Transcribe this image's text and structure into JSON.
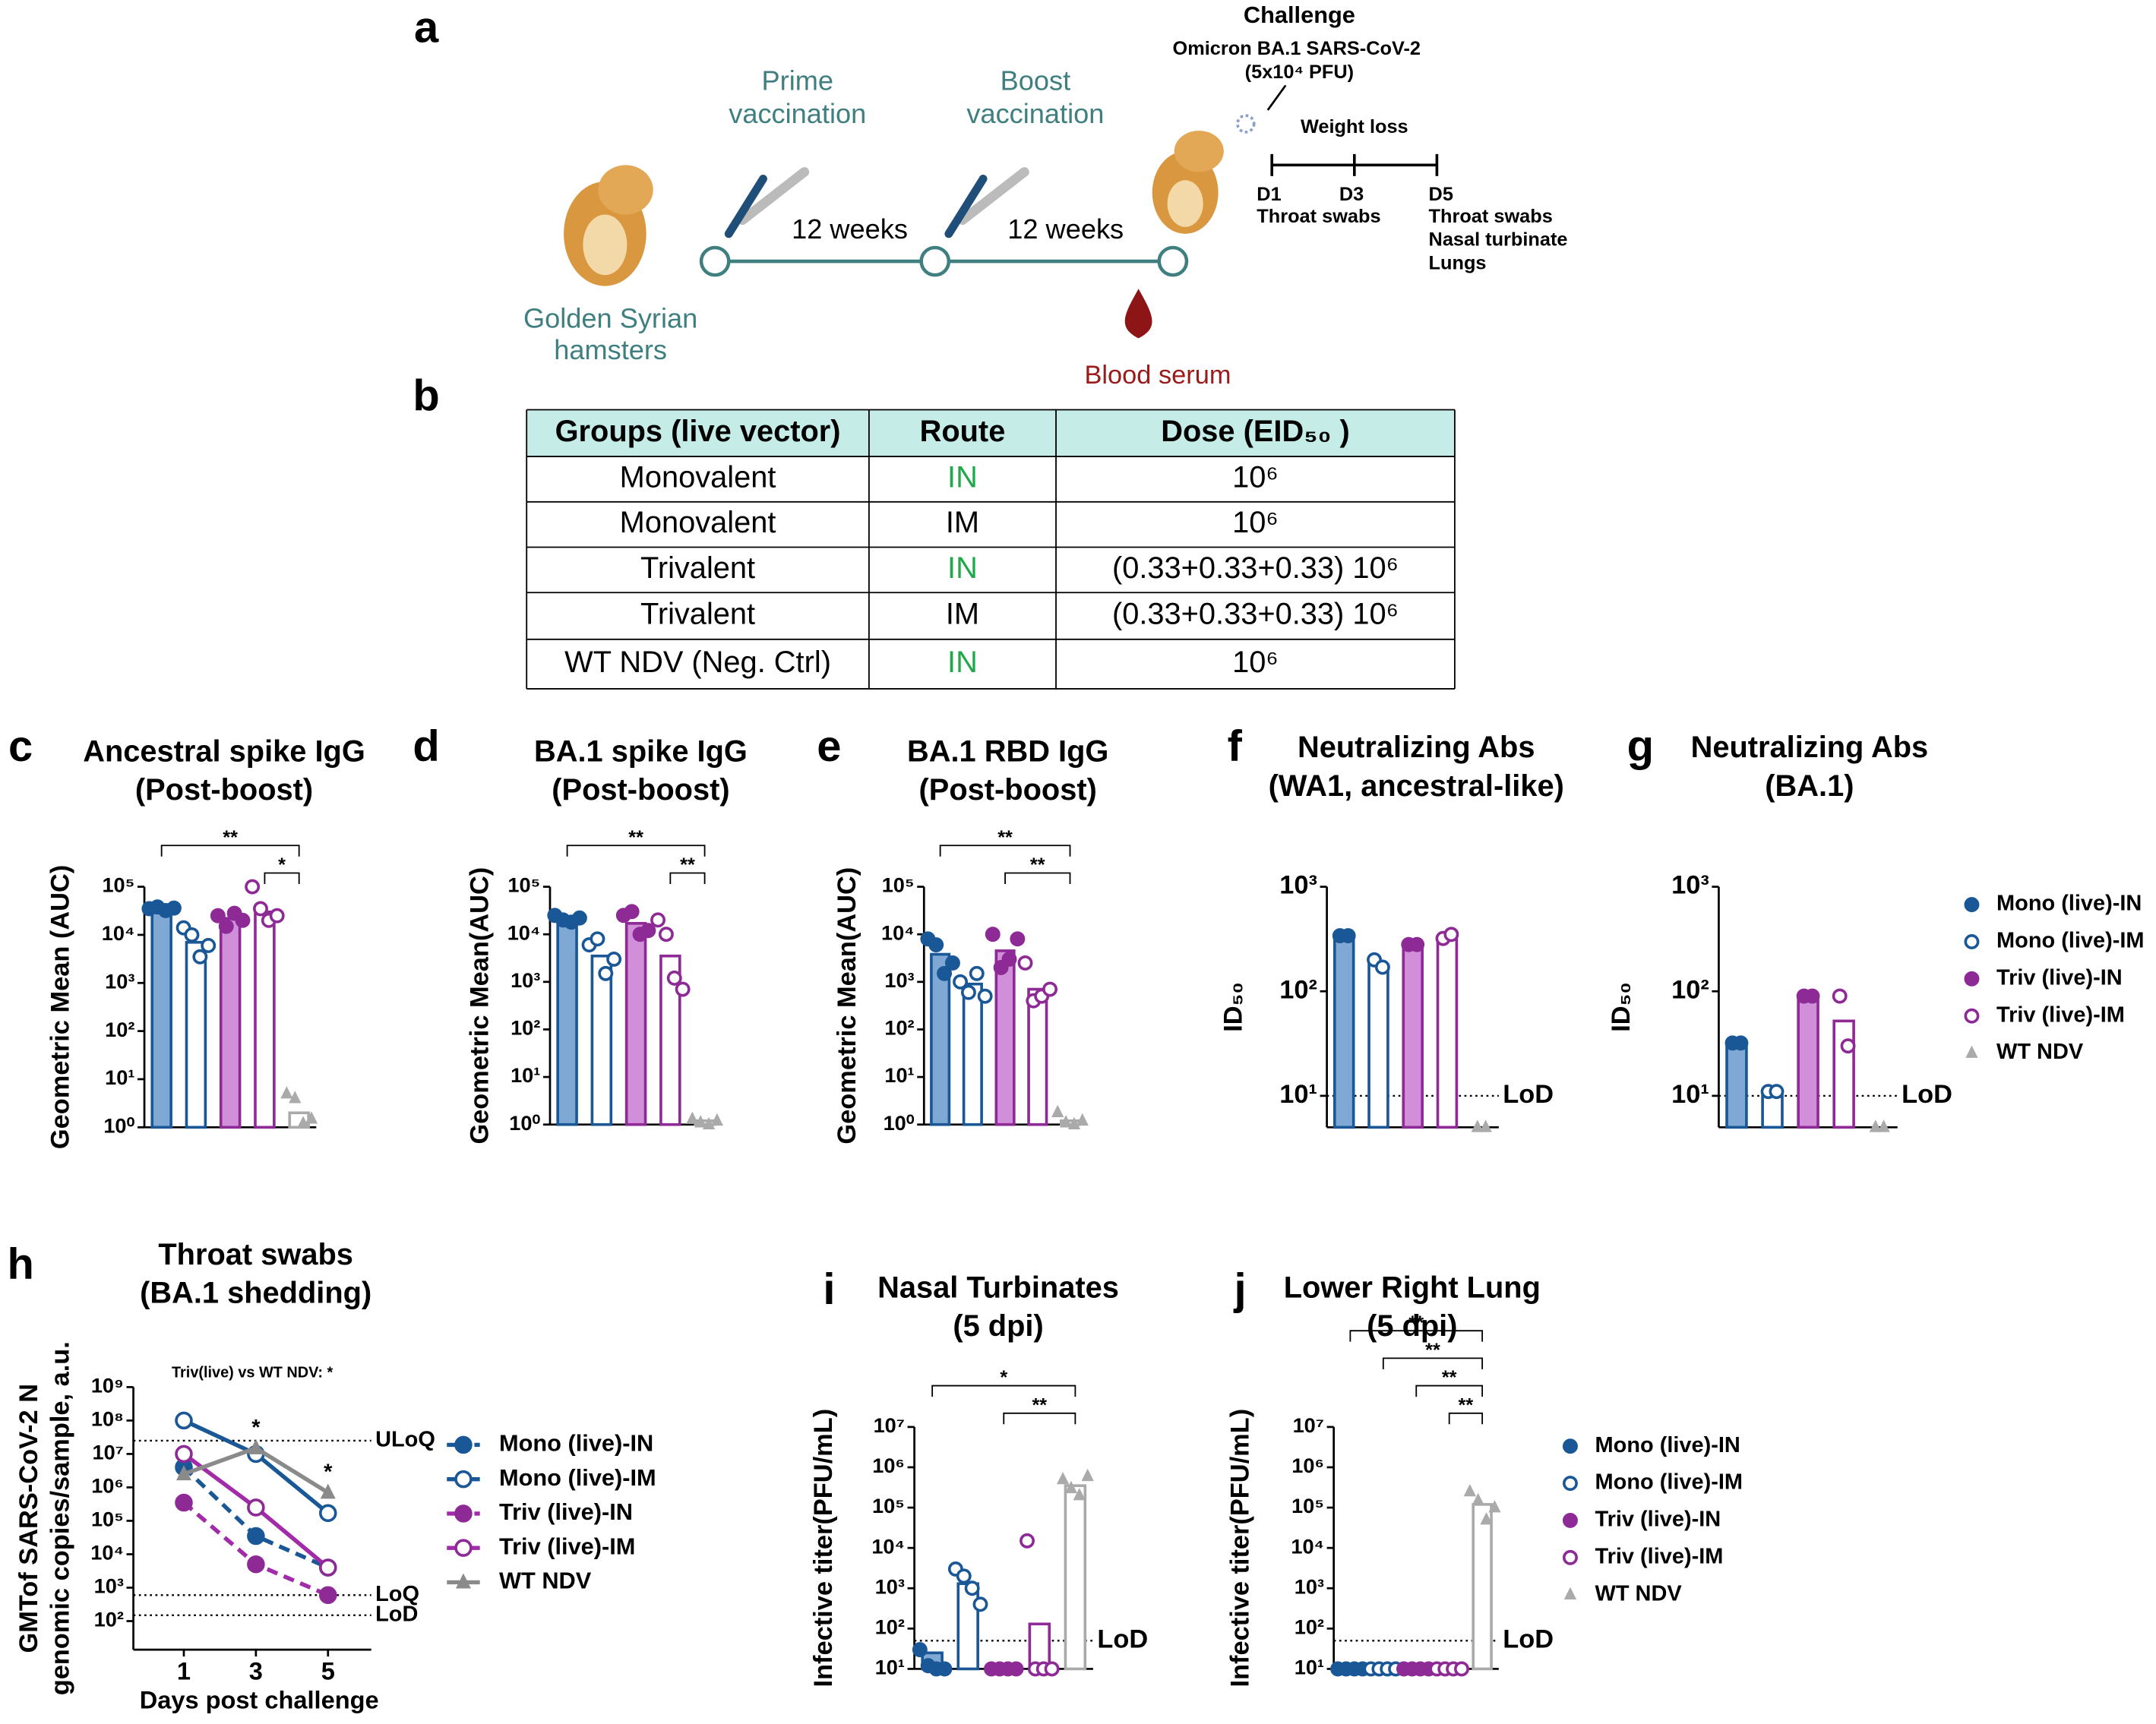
{
  "schematic": {
    "panel": "a",
    "challenge": "Challenge",
    "virus": "Omicron BA.1 SARS-CoV-2",
    "dose": "(5x10⁴ PFU)",
    "prime": [
      "Prime",
      "vaccination"
    ],
    "boost": [
      "Boost",
      "vaccination"
    ],
    "interval": [
      "12 weeks",
      "12 weeks"
    ],
    "animal": [
      "Golden Syrian",
      "hamsters"
    ],
    "serum": "Blood serum",
    "weight": "Weight loss",
    "days": [
      "D1",
      "D3",
      "D5"
    ],
    "d1_samples": [
      "Throat swabs"
    ],
    "d5_samples": [
      "Throat swabs",
      "Nasal turbinate",
      "Lungs"
    ]
  },
  "table": {
    "panel": "b",
    "header": [
      "Groups (live vector)",
      "Route",
      "Dose (EID₅₀ )"
    ],
    "rows": [
      [
        "Monovalent",
        "IN",
        "10⁶"
      ],
      [
        "Monovalent",
        "IM",
        "10⁶"
      ],
      [
        "Trivalent",
        "IN",
        "(0.33+0.33+0.33) 10⁶"
      ],
      [
        "Trivalent",
        "IM",
        "(0.33+0.33+0.33) 10⁶"
      ],
      [
        "WT NDV (Neg. Ctrl)",
        "IN",
        "10⁶"
      ]
    ],
    "route_colors": [
      "#22a84a",
      "#000000",
      "#22a84a",
      "#000000",
      "#22a84a"
    ],
    "header_color": "#c6ece8"
  },
  "series_style": {
    "stroke": [
      "#1a5796",
      "#1a5796",
      "#8e2a95",
      "#8e2a95",
      "#aaaaaa"
    ],
    "fill": [
      "#7fa9d4",
      "#ffffff",
      "#d28fd9",
      "#ffffff",
      "#ffffff"
    ],
    "marker": [
      "filled",
      "open",
      "filled",
      "open",
      "triangle"
    ],
    "line": [
      "#1a5796",
      "#1a5796",
      "#a12ba8",
      "#a12ba8",
      "#8a8a8a"
    ],
    "dash": [
      true,
      false,
      true,
      false,
      false
    ]
  },
  "chart_data": [
    {
      "type": "bar",
      "panel": "c",
      "title": "Ancestral spike IgG",
      "subtitle": "(Post-boost)",
      "ylabel": "Geometric Mean (AUC)",
      "log": true,
      "ylim": [
        1,
        100000
      ],
      "yticks": [
        {
          "value": 1,
          "label": "10⁰"
        },
        {
          "value": 10,
          "label": "10¹"
        },
        {
          "value": 100,
          "label": "10²"
        },
        {
          "value": 1000,
          "label": "10³"
        },
        {
          "value": 10000,
          "label": "10⁴"
        },
        {
          "value": 100000,
          "label": "10⁵"
        }
      ],
      "series": [
        {
          "value": 35000,
          "points": [
            35000,
            38000,
            32000,
            36000
          ]
        },
        {
          "value": 7000,
          "points": [
            14000,
            10000,
            3500,
            6000
          ]
        },
        {
          "value": 22000,
          "points": [
            25000,
            15000,
            28000,
            20000
          ]
        },
        {
          "value": 30000,
          "points": [
            100000,
            35000,
            20000,
            25000
          ]
        },
        {
          "value": 2,
          "points": [
            5,
            4,
            1.2,
            1.5
          ]
        }
      ],
      "brackets": [
        {
          "between": [
            0,
            4
          ],
          "label": "**"
        },
        {
          "between": [
            3,
            4
          ],
          "label": "*"
        }
      ]
    },
    {
      "type": "bar",
      "panel": "d",
      "title": "BA.1 spike IgG",
      "subtitle": "(Post-boost)",
      "ylabel": "Geometric Mean(AUC)",
      "log": true,
      "ylim": [
        1,
        100000
      ],
      "yticks": [
        {
          "value": 1,
          "label": "10⁰"
        },
        {
          "value": 10,
          "label": "10¹"
        },
        {
          "value": 100,
          "label": "10²"
        },
        {
          "value": 1000,
          "label": "10³"
        },
        {
          "value": 10000,
          "label": "10⁴"
        },
        {
          "value": 100000,
          "label": "10⁵"
        }
      ],
      "series": [
        {
          "value": 22000,
          "points": [
            25000,
            20000,
            18000,
            22000
          ]
        },
        {
          "value": 3500,
          "points": [
            6000,
            8000,
            1500,
            3000
          ]
        },
        {
          "value": 17000,
          "points": [
            25000,
            30000,
            10000,
            12000
          ]
        },
        {
          "value": 3500,
          "points": [
            20000,
            10000,
            1200,
            700
          ]
        },
        {
          "value": 1.2,
          "points": [
            1.3,
            1.1,
            1,
            1.2
          ]
        }
      ],
      "brackets": [
        {
          "between": [
            0,
            4
          ],
          "label": "**"
        },
        {
          "between": [
            3,
            4
          ],
          "label": "**"
        }
      ]
    },
    {
      "type": "bar",
      "panel": "e",
      "title": "BA.1 RBD IgG",
      "subtitle": "(Post-boost)",
      "ylabel": "Geometric Mean(AUC)",
      "log": true,
      "ylim": [
        1,
        100000
      ],
      "yticks": [
        {
          "value": 1,
          "label": "10⁰"
        },
        {
          "value": 10,
          "label": "10¹"
        },
        {
          "value": 100,
          "label": "10²"
        },
        {
          "value": 1000,
          "label": "10³"
        },
        {
          "value": 10000,
          "label": "10⁴"
        },
        {
          "value": 100000,
          "label": "10⁵"
        }
      ],
      "series": [
        {
          "value": 3800,
          "points": [
            8000,
            6000,
            1500,
            2500
          ]
        },
        {
          "value": 900,
          "points": [
            1000,
            600,
            1500,
            500
          ]
        },
        {
          "value": 4500,
          "points": [
            10000,
            2000,
            3000,
            8000
          ]
        },
        {
          "value": 700,
          "points": [
            2500,
            400,
            500,
            700
          ]
        },
        {
          "value": 1.2,
          "points": [
            1.8,
            1.1,
            1,
            1.2
          ]
        }
      ],
      "brackets": [
        {
          "between": [
            0,
            4
          ],
          "label": "**"
        },
        {
          "between": [
            2,
            4
          ],
          "label": "**"
        }
      ]
    },
    {
      "type": "bar",
      "panel": "f",
      "title": "Neutralizing Abs",
      "subtitle": "(WA1, ancestral-like)",
      "ylabel": "ID₅₀",
      "log": true,
      "ylim": [
        5,
        1000
      ],
      "yticks": [
        {
          "value": 10,
          "label": "10¹"
        },
        {
          "value": 100,
          "label": "10²"
        },
        {
          "value": 1000,
          "label": "10³"
        }
      ],
      "series": [
        {
          "value": 340,
          "points": [
            340,
            340
          ]
        },
        {
          "value": 180,
          "points": [
            200,
            170
          ]
        },
        {
          "value": 280,
          "points": [
            280,
            280
          ]
        },
        {
          "value": 330,
          "points": [
            320,
            350
          ]
        },
        {
          "value": 5,
          "points": [
            5,
            5
          ]
        }
      ],
      "reference_lines": [
        {
          "value": 10,
          "label": "LoD"
        }
      ]
    },
    {
      "type": "bar",
      "panel": "g",
      "title": "Neutralizing Abs",
      "subtitle": "(BA.1)",
      "ylabel": "ID₅₀",
      "log": true,
      "ylim": [
        5,
        1000
      ],
      "yticks": [
        {
          "value": 10,
          "label": "10¹"
        },
        {
          "value": 100,
          "label": "10²"
        },
        {
          "value": 1000,
          "label": "10³"
        }
      ],
      "series": [
        {
          "name": "Mono (live)-IN",
          "value": 32,
          "points": [
            32,
            32
          ]
        },
        {
          "name": "Mono (live)-IM",
          "value": 11,
          "points": [
            11,
            11
          ]
        },
        {
          "name": "Triv (live)-IN",
          "value": 90,
          "points": [
            90,
            90
          ]
        },
        {
          "name": "Triv (live)-IM",
          "value": 52,
          "points": [
            90,
            30
          ]
        },
        {
          "name": "WT NDV",
          "value": 5,
          "points": [
            5,
            5
          ]
        }
      ],
      "reference_lines": [
        {
          "value": 10,
          "label": "LoD"
        }
      ]
    },
    {
      "type": "line",
      "panel": "h",
      "title": "Throat swabs",
      "subtitle": "(BA.1 shedding)",
      "ylabel": [
        "GMTof SARS-CoV-2 N",
        "genomic copies/sample, a.u."
      ],
      "xlabel": "Days post challenge",
      "log": true,
      "ylim": [
        14,
        1000000000
      ],
      "xlim": [
        -0.4,
        6.2
      ],
      "x": [
        1,
        3,
        5
      ],
      "xticks": [
        1,
        3,
        5
      ],
      "yticks": [
        {
          "value": 100,
          "label": "10²"
        },
        {
          "value": 1000,
          "label": "10³"
        },
        {
          "value": 10000,
          "label": "10⁴"
        },
        {
          "value": 100000,
          "label": "10⁵"
        },
        {
          "value": 1000000,
          "label": "10⁶"
        },
        {
          "value": 10000000,
          "label": "10⁷"
        },
        {
          "value": 100000000,
          "label": "10⁸"
        },
        {
          "value": 1000000000,
          "label": "10⁹"
        }
      ],
      "series": [
        {
          "name": "Mono (live)-IN",
          "values": [
            4000000,
            35000,
            4000
          ]
        },
        {
          "name": "Mono (live)-IM",
          "values": [
            100000000,
            10000000,
            170000
          ]
        },
        {
          "name": "Triv (live)-IN",
          "values": [
            350000,
            5000,
            600
          ]
        },
        {
          "name": "Triv (live)-IM",
          "values": [
            10000000,
            250000,
            4000
          ]
        },
        {
          "name": "WT NDV",
          "values": [
            2500000,
            15000000,
            700000
          ]
        }
      ],
      "reference_lines": [
        {
          "value": 25000000,
          "label": "ULoQ"
        },
        {
          "value": 600,
          "label": "LoQ"
        },
        {
          "value": 150,
          "label": "LoD"
        }
      ],
      "annotation": "Triv(live) vs WT NDV: *",
      "stars": [
        {
          "x": 3,
          "label": "*"
        },
        {
          "x": 5,
          "label": "*"
        }
      ]
    },
    {
      "type": "bar",
      "panel": "i",
      "title": "Nasal Turbinates",
      "subtitle": "(5 dpi)",
      "ylabel": "Infective titer(PFU/mL)",
      "log": true,
      "ylim": [
        10,
        10000000
      ],
      "yticks": [
        {
          "value": 10,
          "label": "10¹"
        },
        {
          "value": 100,
          "label": "10²"
        },
        {
          "value": 1000,
          "label": "10³"
        },
        {
          "value": 10000,
          "label": "10⁴"
        },
        {
          "value": 100000,
          "label": "10⁵"
        },
        {
          "value": 1000000,
          "label": "10⁶"
        },
        {
          "value": 10000000,
          "label": "10⁷"
        }
      ],
      "series": [
        {
          "value": 25,
          "points": [
            30,
            12,
            10,
            10
          ]
        },
        {
          "value": 1300,
          "points": [
            3000,
            2000,
            1000,
            400
          ]
        },
        {
          "value": 10,
          "points": [
            10,
            10,
            10,
            10
          ]
        },
        {
          "value": 130,
          "points": [
            15000,
            10,
            10,
            10
          ]
        },
        {
          "value": 350000,
          "points": [
            500000,
            300000,
            200000,
            600000
          ]
        }
      ],
      "reference_lines": [
        {
          "value": 50,
          "label": "LoD"
        }
      ],
      "brackets": [
        {
          "between": [
            0,
            4
          ],
          "label": "*"
        },
        {
          "between": [
            2,
            4
          ],
          "label": "**"
        }
      ]
    },
    {
      "type": "bar",
      "panel": "j",
      "title": "Lower Right Lung",
      "subtitle": "(5 dpi)",
      "ylabel": "Infective titer(PFU/mL)",
      "log": true,
      "ylim": [
        10,
        10000000
      ],
      "yticks": [
        {
          "value": 10,
          "label": "10¹"
        },
        {
          "value": 100,
          "label": "10²"
        },
        {
          "value": 1000,
          "label": "10³"
        },
        {
          "value": 10000,
          "label": "10⁴"
        },
        {
          "value": 100000,
          "label": "10⁵"
        },
        {
          "value": 1000000,
          "label": "10⁶"
        },
        {
          "value": 10000000,
          "label": "10⁷"
        }
      ],
      "series": [
        {
          "name": "Mono (live)-IN",
          "value": 10,
          "points": [
            10,
            10,
            10,
            10
          ]
        },
        {
          "name": "Mono (live)-IM",
          "value": 10,
          "points": [
            10,
            10,
            10,
            10
          ]
        },
        {
          "name": "Triv (live)-IN",
          "value": 10,
          "points": [
            10,
            10,
            10,
            10
          ]
        },
        {
          "name": "Triv (live)-IM",
          "value": 10,
          "points": [
            10,
            10,
            10,
            10
          ]
        },
        {
          "name": "WT NDV",
          "value": 120000,
          "points": [
            250000,
            150000,
            50000,
            100000
          ]
        }
      ],
      "reference_lines": [
        {
          "value": 50,
          "label": "LoD"
        }
      ],
      "brackets": [
        {
          "between": [
            0,
            4
          ],
          "label": "**"
        },
        {
          "between": [
            1,
            4
          ],
          "label": "**"
        },
        {
          "between": [
            2,
            4
          ],
          "label": "**"
        },
        {
          "between": [
            3,
            4
          ],
          "label": "**"
        }
      ]
    }
  ]
}
